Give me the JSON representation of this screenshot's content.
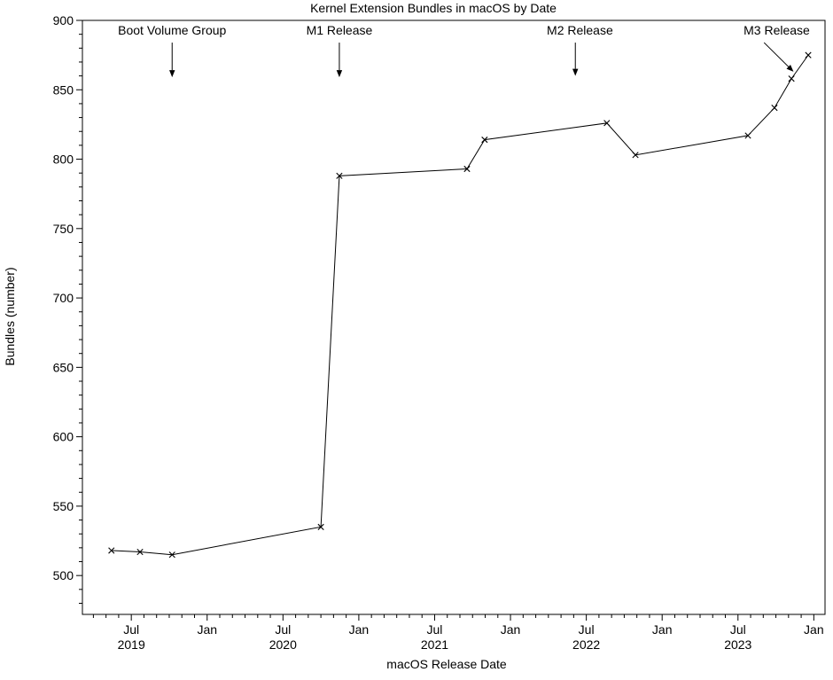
{
  "chart_data": {
    "type": "line",
    "title": "Kernel Extension Bundles in macOS by Date",
    "xlabel": "macOS Release Date",
    "ylabel": "Bundles (number)",
    "grid": false,
    "legend": "none",
    "line_color": "#000000",
    "marker": "x",
    "series": [
      {
        "name": "Kernel extension bundles",
        "points": [
          {
            "date": "2019-05-14",
            "value": 518
          },
          {
            "date": "2019-07-22",
            "value": 517
          },
          {
            "date": "2019-10-08",
            "value": 515
          },
          {
            "date": "2020-10-01",
            "value": 535
          },
          {
            "date": "2020-11-15",
            "value": 788
          },
          {
            "date": "2021-09-18",
            "value": 793
          },
          {
            "date": "2021-10-30",
            "value": 814
          },
          {
            "date": "2022-08-20",
            "value": 826
          },
          {
            "date": "2022-10-28",
            "value": 803
          },
          {
            "date": "2023-07-25",
            "value": 817
          },
          {
            "date": "2023-09-28",
            "value": 837
          },
          {
            "date": "2023-11-08",
            "value": 858
          },
          {
            "date": "2023-12-18",
            "value": 875
          }
        ]
      }
    ],
    "x_axis": {
      "range_months": [
        "2019-03-05",
        "2024-01-28"
      ],
      "minor_interval_months": 1,
      "ticks": [
        {
          "date": "2019-07",
          "label": "Jul",
          "year": "2019"
        },
        {
          "date": "2020-01",
          "label": "Jan"
        },
        {
          "date": "2020-07",
          "label": "Jul",
          "year": "2020"
        },
        {
          "date": "2021-01",
          "label": "Jan"
        },
        {
          "date": "2021-07",
          "label": "Jul",
          "year": "2021"
        },
        {
          "date": "2022-01",
          "label": "Jan"
        },
        {
          "date": "2022-07",
          "label": "Jul",
          "year": "2022"
        },
        {
          "date": "2023-01",
          "label": "Jan"
        },
        {
          "date": "2023-07",
          "label": "Jul",
          "year": "2023"
        },
        {
          "date": "2024-01",
          "label": "Jan"
        }
      ]
    },
    "y_axis": {
      "range": [
        472,
        900
      ],
      "ticks": [
        500,
        550,
        600,
        650,
        700,
        750,
        800,
        850,
        900
      ],
      "minor_step": 10,
      "minor_start": 480
    },
    "annotations": [
      {
        "label": "Boot Volume Group",
        "label_at": {
          "date": "2019-10-08",
          "value": 893
        },
        "arrow": {
          "from": {
            "date": "2019-10-08",
            "value": 884
          },
          "to": {
            "date": "2019-10-08",
            "value": 859
          }
        }
      },
      {
        "label": "M1 Release",
        "label_at": {
          "date": "2020-11-15",
          "value": 893
        },
        "arrow": {
          "from": {
            "date": "2020-11-15",
            "value": 884
          },
          "to": {
            "date": "2020-11-15",
            "value": 859
          }
        }
      },
      {
        "label": "M2 Release",
        "label_at": {
          "date": "2022-06-16",
          "value": 893
        },
        "arrow": {
          "from": {
            "date": "2022-06-05",
            "value": 884
          },
          "to": {
            "date": "2022-06-05",
            "value": 860
          }
        }
      },
      {
        "label": "M3 Release",
        "label_at": {
          "date": "2023-10-03",
          "value": 893
        },
        "arrow": {
          "from": {
            "date": "2023-09-03",
            "value": 884
          },
          "to": {
            "date": "2023-11-13",
            "value": 863
          }
        }
      }
    ]
  }
}
